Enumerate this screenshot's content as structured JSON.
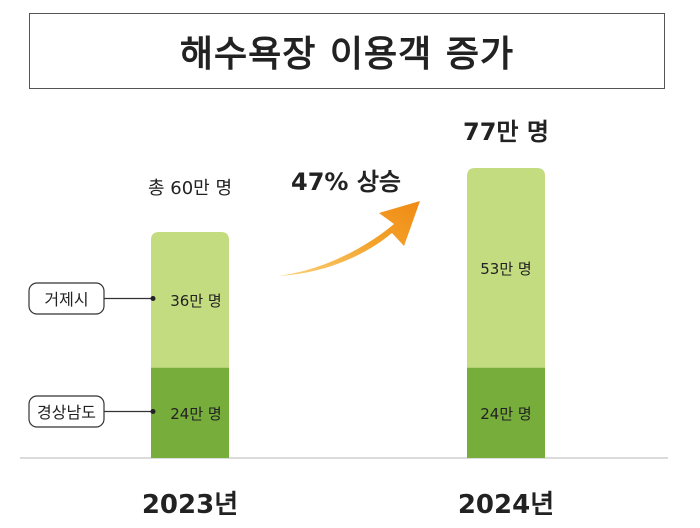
{
  "title": "해수욕장 이용객 증가",
  "chart_data": {
    "type": "bar",
    "stacked": true,
    "categories": [
      "2023년",
      "2024년"
    ],
    "series": [
      {
        "name": "경상남도",
        "values": [
          24,
          24
        ],
        "color": "#77ad3a",
        "value_labels": [
          "24만 명",
          "24만 명"
        ]
      },
      {
        "name": "거제시",
        "values": [
          36,
          53
        ],
        "color": "#c4dc80",
        "value_labels": [
          "36만 명",
          "53만 명"
        ]
      }
    ],
    "totals": [
      60,
      77
    ],
    "total_labels": [
      "총 60만 명",
      "77만 명"
    ],
    "annotation": {
      "text": "47% 상승",
      "color": "#f08a14"
    },
    "legend_labels": [
      "거제시",
      "경상남도"
    ],
    "ylim": [
      0,
      77
    ]
  }
}
